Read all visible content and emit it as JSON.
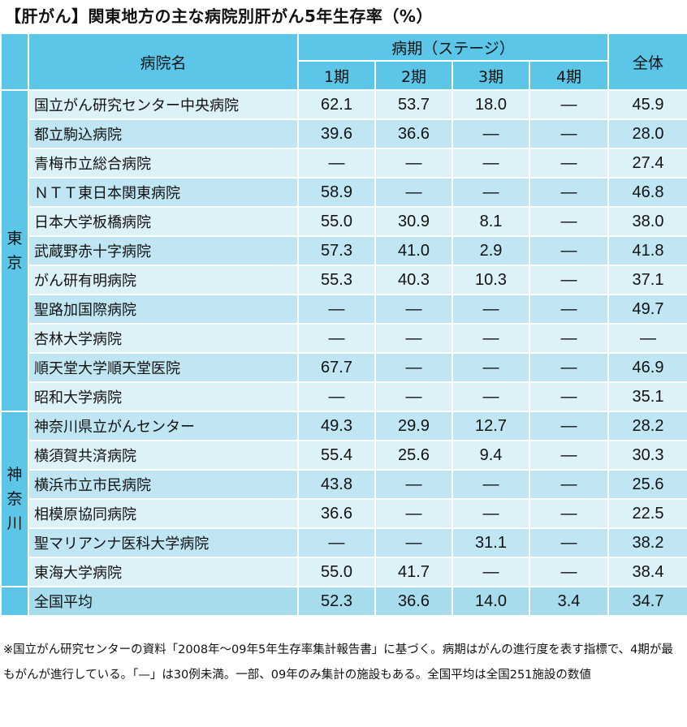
{
  "title": "【肝がん】関東地方の主な病院別肝がん5年生存率（%）",
  "header": {
    "hospital_col": "病院名",
    "stage_group": "病期（ステージ）",
    "stages": [
      "1期",
      "2期",
      "3期",
      "4期"
    ],
    "overall": "全体"
  },
  "groups": {
    "tokyo": "東京",
    "kanagawa": "神奈川"
  },
  "rows": [
    {
      "name": "国立がん研究センター中央病院",
      "s1": "62.1",
      "s2": "53.7",
      "s3": "18.0",
      "s4": "—",
      "all": "45.9"
    },
    {
      "name": "都立駒込病院",
      "s1": "39.6",
      "s2": "36.6",
      "s3": "—",
      "s4": "—",
      "all": "28.0"
    },
    {
      "name": "青梅市立総合病院",
      "s1": "—",
      "s2": "—",
      "s3": "—",
      "s4": "—",
      "all": "27.4"
    },
    {
      "name": "ＮＴＴ東日本関東病院",
      "s1": "58.9",
      "s2": "—",
      "s3": "—",
      "s4": "—",
      "all": "46.8"
    },
    {
      "name": "日本大学板橋病院",
      "s1": "55.0",
      "s2": "30.9",
      "s3": "8.1",
      "s4": "—",
      "all": "38.0"
    },
    {
      "name": "武蔵野赤十字病院",
      "s1": "57.3",
      "s2": "41.0",
      "s3": "2.9",
      "s4": "—",
      "all": "41.8"
    },
    {
      "name": "がん研有明病院",
      "s1": "55.3",
      "s2": "40.3",
      "s3": "10.3",
      "s4": "—",
      "all": "37.1"
    },
    {
      "name": "聖路加国際病院",
      "s1": "—",
      "s2": "—",
      "s3": "—",
      "s4": "—",
      "all": "49.7"
    },
    {
      "name": "杏林大学病院",
      "s1": "—",
      "s2": "—",
      "s3": "—",
      "s4": "—",
      "all": "—"
    },
    {
      "name": "順天堂大学順天堂医院",
      "s1": "67.7",
      "s2": "—",
      "s3": "—",
      "s4": "—",
      "all": "46.9"
    },
    {
      "name": "昭和大学病院",
      "s1": "—",
      "s2": "—",
      "s3": "—",
      "s4": "—",
      "all": "35.1"
    },
    {
      "name": "神奈川県立がんセンター",
      "s1": "49.3",
      "s2": "29.9",
      "s3": "12.7",
      "s4": "—",
      "all": "28.2"
    },
    {
      "name": "横須賀共済病院",
      "s1": "55.4",
      "s2": "25.6",
      "s3": "9.4",
      "s4": "—",
      "all": "30.3"
    },
    {
      "name": "横浜市立市民病院",
      "s1": "43.8",
      "s2": "—",
      "s3": "—",
      "s4": "—",
      "all": "25.6"
    },
    {
      "name": "相模原協同病院",
      "s1": "36.6",
      "s2": "—",
      "s3": "—",
      "s4": "—",
      "all": "22.5"
    },
    {
      "name": "聖マリアンナ医科大学病院",
      "s1": "—",
      "s2": "—",
      "s3": "31.1",
      "s4": "—",
      "all": "38.2"
    },
    {
      "name": "東海大学病院",
      "s1": "55.0",
      "s2": "41.7",
      "s3": "—",
      "s4": "—",
      "all": "38.4"
    }
  ],
  "average": {
    "name": "全国平均",
    "s1": "52.3",
    "s2": "36.6",
    "s3": "14.0",
    "s4": "3.4",
    "all": "34.7"
  },
  "note": "※国立がん研究センターの資料「2008年〜09年5年生存率集計報告書」に基づく。病期はがんの進行度を表す指標で、4期が最もがんが進行している。「—」は30例未満。一部、09年のみ集計の施設もある。全国平均は全国251施設の数値",
  "colors": {
    "header": "#5bc6e8",
    "row_light": "#ddf1f9",
    "row_dark": "#c1e6f3",
    "avg": "#a7dced"
  },
  "chart_data": {
    "type": "table",
    "title": "【肝がん】関東地方の主な病院別肝がん5年生存率（%）",
    "columns": [
      "病院名",
      "1期",
      "2期",
      "3期",
      "4期",
      "全体"
    ],
    "row_groups": [
      {
        "group": "東京",
        "rows": [
          0,
          1,
          2,
          3,
          4,
          5,
          6,
          7,
          8,
          9,
          10
        ]
      },
      {
        "group": "神奈川",
        "rows": [
          11,
          12,
          13,
          14,
          15,
          16
        ]
      }
    ],
    "values": [
      [
        62.1,
        53.7,
        18.0,
        null,
        45.9
      ],
      [
        39.6,
        36.6,
        null,
        null,
        28.0
      ],
      [
        null,
        null,
        null,
        null,
        27.4
      ],
      [
        58.9,
        null,
        null,
        null,
        46.8
      ],
      [
        55.0,
        30.9,
        8.1,
        null,
        38.0
      ],
      [
        57.3,
        41.0,
        2.9,
        null,
        41.8
      ],
      [
        55.3,
        40.3,
        10.3,
        null,
        37.1
      ],
      [
        null,
        null,
        null,
        null,
        49.7
      ],
      [
        null,
        null,
        null,
        null,
        null
      ],
      [
        67.7,
        null,
        null,
        null,
        46.9
      ],
      [
        null,
        null,
        null,
        null,
        35.1
      ],
      [
        49.3,
        29.9,
        12.7,
        null,
        28.2
      ],
      [
        55.4,
        25.6,
        9.4,
        null,
        30.3
      ],
      [
        43.8,
        null,
        null,
        null,
        25.6
      ],
      [
        36.6,
        null,
        null,
        null,
        22.5
      ],
      [
        null,
        null,
        31.1,
        null,
        38.2
      ],
      [
        55.0,
        41.7,
        null,
        null,
        38.4
      ]
    ],
    "national_average": [
      52.3,
      36.6,
      14.0,
      3.4,
      34.7
    ]
  }
}
